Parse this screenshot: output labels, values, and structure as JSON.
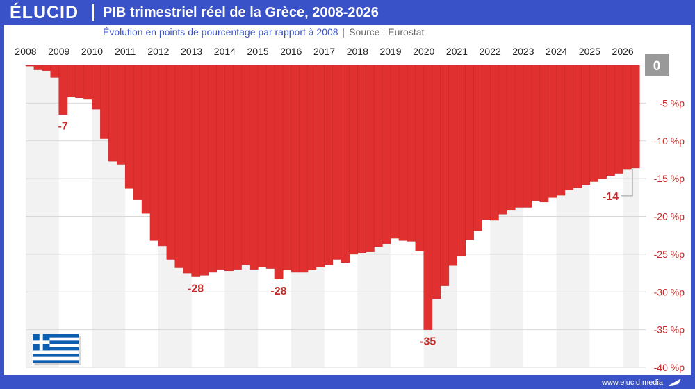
{
  "header": {
    "brand": "ÉLUCID",
    "title": "PIB trimestriel réel de la Grèce, 2008-2026"
  },
  "subtitle": {
    "text": "Évolution en points de pourcentage par rapport à 2008",
    "separator": "|",
    "source": "Source : Eurostat"
  },
  "footer": {
    "url": "www.elucid.media"
  },
  "colors": {
    "bar": "#e03030",
    "brand": "#3a52c8",
    "band": "#f2f2f2",
    "label": "#c42a2a"
  },
  "icons": {
    "flag": "greece-flag-icon",
    "logo": "pen-icon"
  },
  "chart_data": {
    "type": "bar",
    "x_tick_labels": [
      "2008",
      "2009",
      "2010",
      "2011",
      "2012",
      "2013",
      "2014",
      "2015",
      "2016",
      "2017",
      "2018",
      "2019",
      "2020",
      "2021",
      "2022",
      "2023",
      "2024",
      "2025",
      "2026"
    ],
    "y_tick_labels": [
      "0",
      "-5 %p",
      "-10 %p",
      "-15 %p",
      "-20 %p",
      "-25 %p",
      "-30 %p",
      "-35 %p",
      "-40 %p"
    ],
    "ylim": [
      -40,
      0
    ],
    "quarters_start": "2008 Q1",
    "values": [
      -0.1,
      -0.6,
      -0.7,
      -1.6,
      -6.5,
      -4.2,
      -4.3,
      -4.5,
      -5.8,
      -9.7,
      -12.7,
      -13.1,
      -16.3,
      -17.8,
      -19.6,
      -23.2,
      -23.9,
      -25.7,
      -26.8,
      -27.5,
      -28.0,
      -27.8,
      -27.4,
      -27.0,
      -27.2,
      -27.0,
      -26.4,
      -27.0,
      -26.7,
      -26.9,
      -28.3,
      -27.1,
      -27.4,
      -27.4,
      -27.1,
      -26.7,
      -26.4,
      -25.7,
      -26.1,
      -25.0,
      -24.8,
      -24.7,
      -24.0,
      -23.6,
      -22.9,
      -23.2,
      -23.3,
      -24.6,
      -35.0,
      -30.9,
      -29.2,
      -26.5,
      -25.2,
      -23.1,
      -21.9,
      -20.4,
      -20.5,
      -19.7,
      -19.2,
      -18.8,
      -18.8,
      -17.9,
      -18.1,
      -17.5,
      -17.2,
      -16.5,
      -16.2,
      -15.8,
      -15.4,
      -15.0,
      -14.6,
      -14.3,
      -13.8,
      -13.6
    ],
    "annotations": [
      {
        "text": "-7",
        "index": 4
      },
      {
        "text": "-28",
        "index": 20
      },
      {
        "text": "-28",
        "index": 30
      },
      {
        "text": "-35",
        "index": 48
      },
      {
        "text": "-14",
        "index": 73
      }
    ],
    "zero_badge": "0",
    "grid": true,
    "alternating_year_bands": true,
    "legend": "none"
  }
}
